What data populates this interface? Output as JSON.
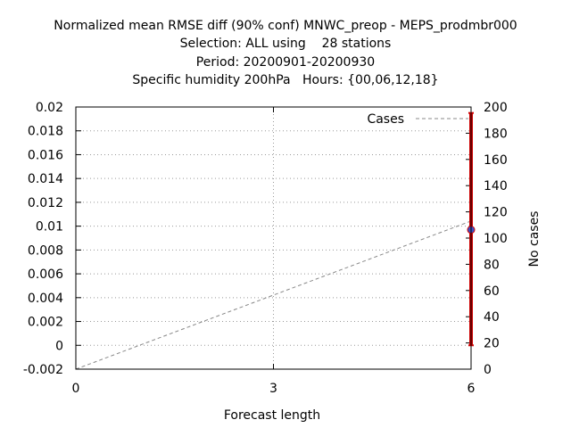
{
  "chart_data": {
    "type": "line",
    "title_lines": [
      "Normalized mean RMSE diff (90% conf) MNWC_preop - MEPS_prodmbr000",
      "Selection: ALL using    28 stations",
      "Period: 20200901-20200930",
      "Specific humidity 200hPa   Hours: {00,06,12,18}"
    ],
    "xlabel": "Forecast length",
    "ylabel_right": "No cases",
    "xlim": [
      0,
      6
    ],
    "ylim": [
      -0.002,
      0.02
    ],
    "y2lim": [
      0,
      200
    ],
    "x_ticks": [
      "0",
      "3",
      "6"
    ],
    "y_ticks": [
      "-0.002",
      "0",
      "0.002",
      "0.004",
      "0.006",
      "0.008",
      "0.01",
      "0.012",
      "0.014",
      "0.016",
      "0.018",
      "0.02"
    ],
    "y2_ticks": [
      "0",
      "20",
      "40",
      "60",
      "80",
      "100",
      "120",
      "140",
      "160",
      "180",
      "200"
    ],
    "grid": true,
    "legend_position": "top-right",
    "series": [
      {
        "name": "Cases",
        "axis": "right",
        "style": "dashed",
        "color": "#888888",
        "points": [
          {
            "x": 0,
            "y": 0
          },
          {
            "x": 6,
            "y": 113
          }
        ]
      },
      {
        "axis": "left",
        "style": "errorbar",
        "color": "#cc0000",
        "marker_color": "#3a4fc4",
        "points": [
          {
            "x": 6,
            "y": 0.0097,
            "low": 0.0,
            "high": 0.0195
          }
        ]
      }
    ]
  }
}
